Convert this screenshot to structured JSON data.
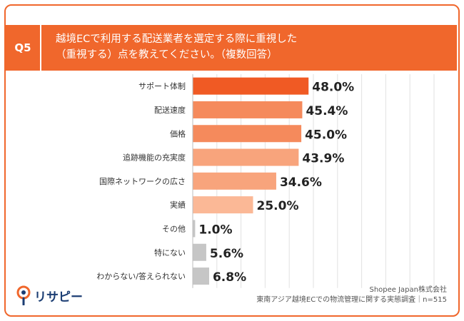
{
  "header": {
    "badge": "Q5",
    "title_line1": "越境ECで利用する配送業者を選定する際に重視した",
    "title_line2": "（重視する）点を教えてください。（複数回答）"
  },
  "chart_data": {
    "type": "bar",
    "orientation": "horizontal",
    "title": "",
    "xlabel": "",
    "ylabel": "",
    "xlim": [
      0,
      100
    ],
    "grid": true,
    "unit": "%",
    "categories": [
      "サポート体制",
      "配送速度",
      "価格",
      "追跡機能の充実度",
      "国際ネットワークの広さ",
      "実績",
      "その他",
      "特にない",
      "わからない/答えられない"
    ],
    "values": [
      48.0,
      45.4,
      45.0,
      43.9,
      34.6,
      25.0,
      1.0,
      5.6,
      6.8
    ],
    "labels": [
      "48.0%",
      "45.4%",
      "45.0%",
      "43.9%",
      "34.6%",
      "25.0%",
      "1.0%",
      "5.6%",
      "6.8%"
    ],
    "colors": [
      "#f05a24",
      "#f58a5c",
      "#f58a5c",
      "#f8a47c",
      "#f8a47c",
      "#fbb896",
      "#c6c6c6",
      "#c6c6c6",
      "#c6c6c6"
    ]
  },
  "footer": {
    "logo_text": "リサピー",
    "source_line1": "Shopee Japan株式会社",
    "source_line2": "東南アジア越境ECでの物流管理に関する実態調査｜n=515"
  },
  "colors": {
    "accent": "#f0672c",
    "logo": "#1b3d73"
  },
  "icons": {
    "logo": "location-pin-logo-icon"
  }
}
